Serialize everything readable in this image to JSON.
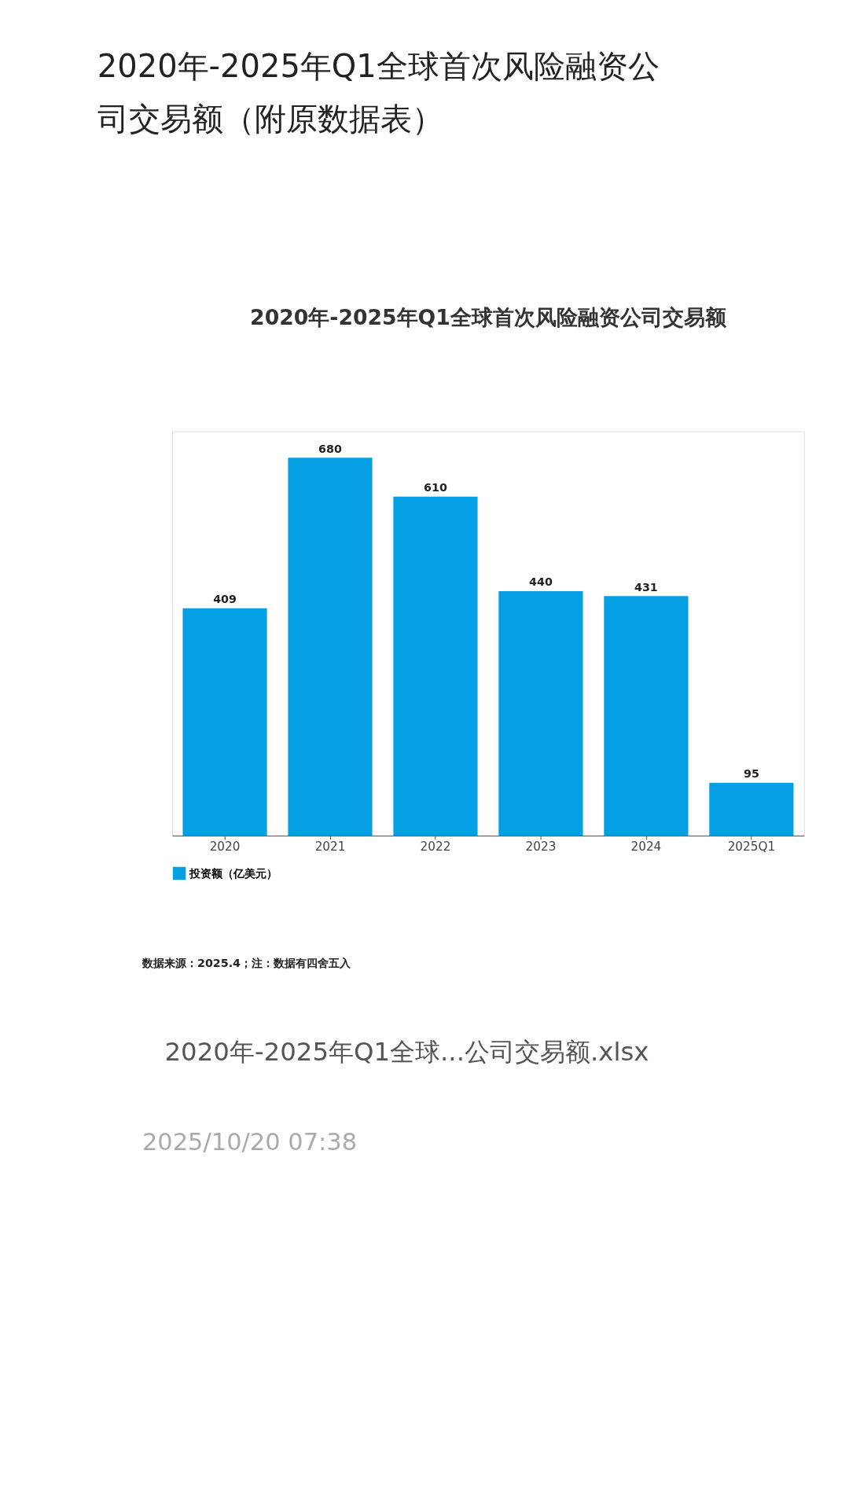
{
  "chart_data": {
    "type": "bar",
    "title": "2020年-2025年Q1全球首次风险融资公司交易额（附原数据表）",
    "subtitle": "2020年-2025年Q1全球首次风险融资公司交易额",
    "categories": [
      "2020",
      "2021",
      "2022",
      "2023",
      "2024",
      "2025Q1"
    ],
    "series": [
      {
        "name": "投资额（亿美元）",
        "color": "#059fe3",
        "values": [
          409,
          680,
          610,
          440,
          431,
          95
        ]
      }
    ],
    "data_labels": true,
    "legend": "bottom",
    "grid": false,
    "annotations": [
      "数据来源：2025.4；注：数据有四舍五入",
      "2020年-2025年Q1全球...公司交易额.xlsx",
      "2025/10/20 07:38"
    ]
  }
}
